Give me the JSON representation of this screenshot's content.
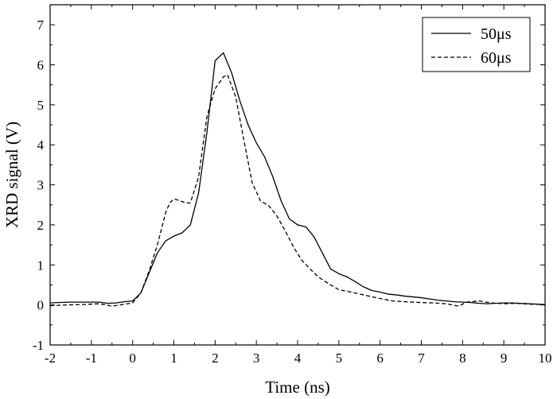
{
  "chart_data": {
    "type": "line",
    "xlabel": "Time (ns)",
    "ylabel": "XRD signal (V)",
    "xlim": [
      -2,
      10
    ],
    "ylim": [
      -1,
      7.5
    ],
    "xticks": [
      -2,
      -1,
      0,
      1,
      2,
      3,
      4,
      5,
      6,
      7,
      8,
      9,
      10
    ],
    "yticks": [
      -1,
      0,
      1,
      2,
      3,
      4,
      5,
      6,
      7
    ],
    "grid": false,
    "legend_position": "top-right",
    "series": [
      {
        "name": "50μs",
        "style": "solid",
        "x": [
          -2,
          -1.8,
          -1.5,
          -1.2,
          -0.8,
          -0.6,
          -0.4,
          -0.2,
          0,
          0.2,
          0.4,
          0.6,
          0.8,
          1,
          1.2,
          1.4,
          1.6,
          1.8,
          2,
          2.2,
          2.4,
          2.6,
          2.8,
          3,
          3.2,
          3.4,
          3.6,
          3.8,
          4,
          4.2,
          4.4,
          4.6,
          4.8,
          5,
          5.2,
          5.4,
          5.6,
          5.8,
          6,
          6.2,
          6.4,
          6.6,
          6.8,
          7,
          7.2,
          7.4,
          7.6,
          7.8,
          8,
          8.2,
          8.4,
          8.6,
          8.8,
          9,
          9.2,
          9.4,
          9.6,
          9.8,
          10
        ],
        "y": [
          0.05,
          0.06,
          0.07,
          0.07,
          0.07,
          0.04,
          0.05,
          0.08,
          0.1,
          0.3,
          0.8,
          1.3,
          1.6,
          1.72,
          1.8,
          2.0,
          2.8,
          4.3,
          6.1,
          6.3,
          5.8,
          5.1,
          4.5,
          4.05,
          3.7,
          3.2,
          2.6,
          2.15,
          2.0,
          1.95,
          1.7,
          1.3,
          0.9,
          0.78,
          0.7,
          0.58,
          0.45,
          0.36,
          0.32,
          0.27,
          0.25,
          0.22,
          0.2,
          0.18,
          0.15,
          0.12,
          0.1,
          0.08,
          0.07,
          0.06,
          0.04,
          0.03,
          0.04,
          0.05,
          0.05,
          0.04,
          0.03,
          0.02,
          0.01
        ]
      },
      {
        "name": "60μs",
        "style": "dashed",
        "x": [
          -2,
          -1.6,
          -1.2,
          -0.8,
          -0.5,
          -0.3,
          0,
          0.2,
          0.4,
          0.6,
          0.8,
          0.9,
          1,
          1.1,
          1.2,
          1.3,
          1.4,
          1.6,
          1.8,
          2,
          2.2,
          2.3,
          2.5,
          2.7,
          2.9,
          3.1,
          3.3,
          3.5,
          3.7,
          3.9,
          4.1,
          4.3,
          4.5,
          4.8,
          5,
          5.3,
          5.6,
          6,
          6.3,
          6.6,
          7,
          7.3,
          7.6,
          7.9,
          8.1,
          8.4,
          8.7,
          9,
          9.3,
          9.6,
          10
        ],
        "y": [
          -0.02,
          0,
          0.01,
          0.03,
          -0.03,
          0.0,
          0.05,
          0.3,
          0.85,
          1.5,
          2.3,
          2.55,
          2.65,
          2.62,
          2.58,
          2.55,
          2.55,
          3.2,
          4.7,
          5.4,
          5.7,
          5.75,
          5.2,
          4.1,
          3.05,
          2.6,
          2.48,
          2.22,
          1.85,
          1.45,
          1.12,
          0.9,
          0.7,
          0.5,
          0.38,
          0.32,
          0.25,
          0.16,
          0.1,
          0.08,
          0.06,
          0.05,
          0.03,
          -0.03,
          0.07,
          0.1,
          0.05,
          0.03,
          0.04,
          0.02,
          0.01
        ]
      }
    ]
  }
}
